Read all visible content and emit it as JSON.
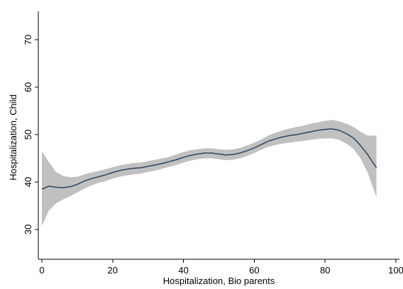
{
  "chart_data": {
    "type": "line",
    "title": "",
    "xlabel": "Hospitalization, Bio parents",
    "ylabel": "Hospitalization, Child",
    "xlim": [
      -1,
      101
    ],
    "ylim": [
      23.7,
      76
    ],
    "x_ticks": [
      0,
      20,
      40,
      60,
      80,
      100
    ],
    "y_ticks": [
      30,
      40,
      50,
      60,
      70
    ],
    "x_tick_labels": [
      "0",
      "20",
      "40",
      "60",
      "80",
      "100"
    ],
    "y_tick_labels": [
      "30",
      "40",
      "50",
      "60",
      "70"
    ],
    "grid": false,
    "legend": "none",
    "colors": {
      "line": "#1f3d5c",
      "band": "#c0c0c0",
      "axis": "#000000"
    },
    "series": [
      {
        "kind": "fit",
        "x": [
          0,
          2,
          4,
          6,
          8,
          10,
          12,
          14,
          16,
          18,
          20,
          22,
          24,
          26,
          28,
          30,
          32,
          34,
          36,
          38,
          40,
          42,
          44,
          46,
          48,
          50,
          52,
          54,
          56,
          58,
          60,
          62,
          64,
          66,
          68,
          70,
          72,
          74,
          76,
          78,
          80,
          82,
          84,
          86,
          88,
          90,
          92,
          94.5
        ],
        "y": [
          38.5,
          39.1,
          38.9,
          38.8,
          39.0,
          39.5,
          40.2,
          40.7,
          41.1,
          41.5,
          42.0,
          42.4,
          42.7,
          42.9,
          43.0,
          43.3,
          43.6,
          43.9,
          44.3,
          44.7,
          45.2,
          45.6,
          45.9,
          46.1,
          46.1,
          45.9,
          45.7,
          45.8,
          46.1,
          46.6,
          47.2,
          47.9,
          48.6,
          49.1,
          49.5,
          49.8,
          50.0,
          50.3,
          50.6,
          50.9,
          51.1,
          51.2,
          50.9,
          50.2,
          49.3,
          47.7,
          45.8,
          43.0
        ]
      },
      {
        "kind": "ci_upper",
        "x": [
          0,
          2,
          4,
          6,
          8,
          10,
          12,
          14,
          16,
          18,
          20,
          22,
          24,
          26,
          28,
          30,
          32,
          34,
          36,
          38,
          40,
          42,
          44,
          46,
          48,
          50,
          52,
          54,
          56,
          58,
          60,
          62,
          64,
          66,
          68,
          70,
          72,
          74,
          76,
          78,
          80,
          82,
          84,
          86,
          88,
          90,
          92,
          94.5
        ],
        "y": [
          46.5,
          44.2,
          42.1,
          41.3,
          41.0,
          41.1,
          41.6,
          42.0,
          42.3,
          42.7,
          43.1,
          43.5,
          43.8,
          44.0,
          44.1,
          44.4,
          44.7,
          45.0,
          45.3,
          45.8,
          46.3,
          46.7,
          46.9,
          47.1,
          47.1,
          46.9,
          46.8,
          46.9,
          47.2,
          47.7,
          48.3,
          49.0,
          49.8,
          50.4,
          50.9,
          51.3,
          51.6,
          51.9,
          52.3,
          52.6,
          52.9,
          53.1,
          52.8,
          52.3,
          51.6,
          50.6,
          49.8,
          49.8
        ]
      },
      {
        "kind": "ci_lower",
        "x": [
          0,
          2,
          4,
          6,
          8,
          10,
          12,
          14,
          16,
          18,
          20,
          22,
          24,
          26,
          28,
          30,
          32,
          34,
          36,
          38,
          40,
          42,
          44,
          46,
          48,
          50,
          52,
          54,
          56,
          58,
          60,
          62,
          64,
          66,
          68,
          70,
          72,
          74,
          76,
          78,
          80,
          82,
          84,
          86,
          88,
          90,
          92,
          94.5
        ],
        "y": [
          30.7,
          34.0,
          35.5,
          36.3,
          37.0,
          37.8,
          38.6,
          39.3,
          39.8,
          40.2,
          40.7,
          41.1,
          41.4,
          41.6,
          41.8,
          42.1,
          42.4,
          42.8,
          43.2,
          43.6,
          44.1,
          44.5,
          44.8,
          45.0,
          45.0,
          44.8,
          44.6,
          44.7,
          45.0,
          45.5,
          46.1,
          46.8,
          47.4,
          47.8,
          48.1,
          48.3,
          48.5,
          48.7,
          48.9,
          49.1,
          49.2,
          49.2,
          48.9,
          48.1,
          47.0,
          45.0,
          42.0,
          36.8
        ]
      }
    ]
  }
}
